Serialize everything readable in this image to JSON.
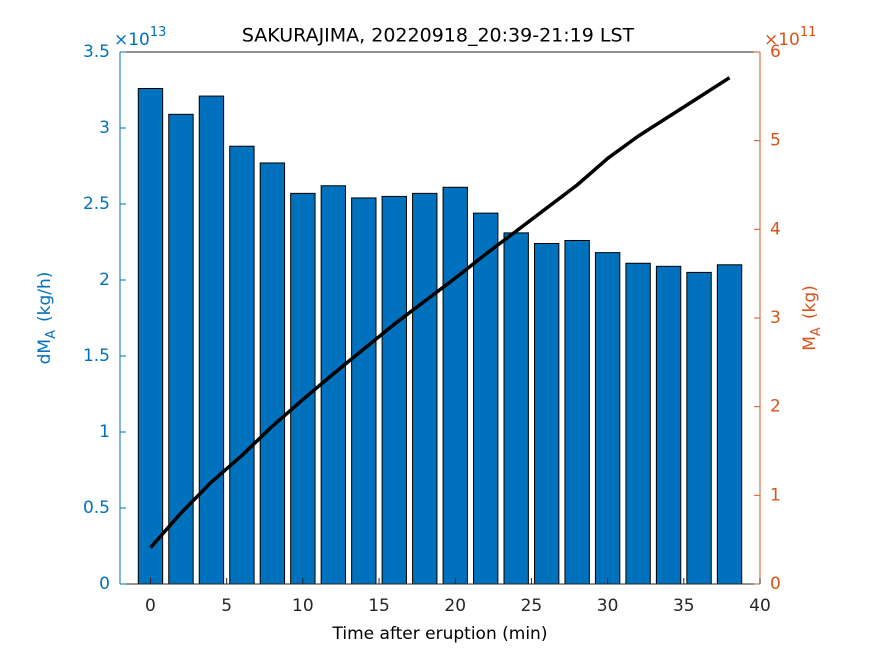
{
  "chart_data": {
    "type": "bar",
    "title": "SAKURAJIMA, 20220918_20:39-21:19 LST",
    "xlabel": "Time after eruption (min)",
    "ylabel": {
      "main": "dM",
      "sub": "A",
      "unit": "(kg/h)"
    },
    "y2label": {
      "main": "M",
      "sub": "A",
      "unit": "(kg)"
    },
    "yexponent": {
      "base": "×10",
      "power": "13"
    },
    "y2exponent": {
      "base": "×10",
      "power": "11"
    },
    "x": [
      0,
      2,
      4,
      6,
      8,
      10,
      12,
      14,
      16,
      18,
      20,
      22,
      24,
      26,
      28,
      30,
      32,
      34,
      36,
      38
    ],
    "series": [
      {
        "type": "bar",
        "color": "#0072BD",
        "values": [
          3.26,
          3.09,
          3.21,
          2.88,
          2.77,
          2.57,
          2.62,
          2.54,
          2.55,
          2.57,
          2.61,
          2.44,
          2.31,
          2.24,
          2.26,
          2.18,
          2.11,
          2.09,
          2.05,
          2.1
        ]
      },
      {
        "type": "line",
        "axis": "y2",
        "color": "#000000",
        "values": [
          0.41,
          0.8,
          1.15,
          1.45,
          1.78,
          2.08,
          2.37,
          2.65,
          2.93,
          3.19,
          3.45,
          3.72,
          3.98,
          4.24,
          4.5,
          4.8,
          5.05,
          5.27,
          5.49,
          5.71
        ]
      }
    ],
    "xlim": [
      -2,
      40
    ],
    "xticks": [
      0,
      5,
      10,
      15,
      20,
      25,
      30,
      35,
      40
    ],
    "ylim": [
      0,
      3.5
    ],
    "yticks": [
      0,
      0.5,
      1,
      1.5,
      2,
      2.5,
      3,
      3.5
    ],
    "ycolor": "#0072BD",
    "y2lim": [
      0,
      6
    ],
    "y2ticks": [
      0,
      1,
      2,
      3,
      4,
      5,
      6
    ],
    "y2color": "#D95319"
  }
}
